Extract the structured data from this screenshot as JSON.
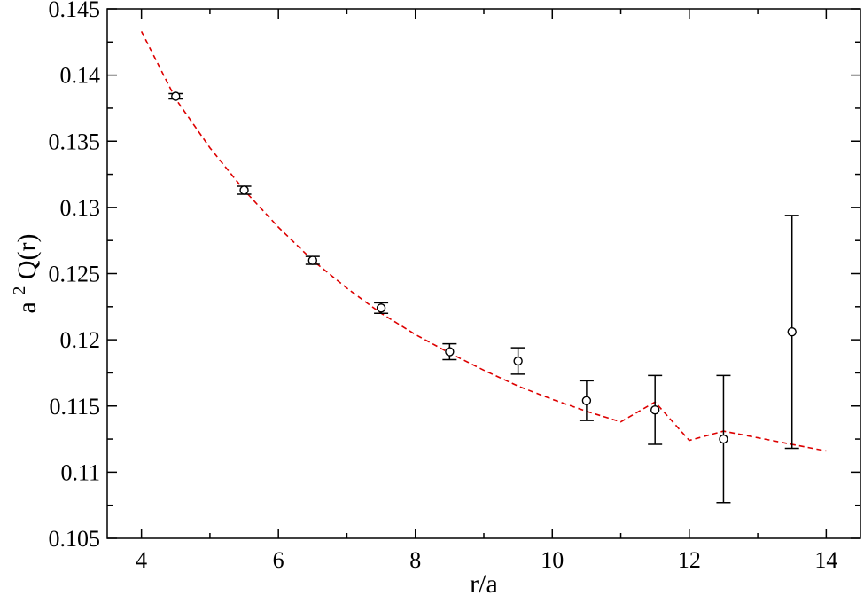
{
  "chart_data": {
    "type": "scatter",
    "title": "",
    "xlabel": "r/a",
    "ylabel_base": "a",
    "ylabel_sup": "2",
    "ylabel_rest": "Q(r)",
    "xlim": [
      3.5,
      14.5
    ],
    "ylim": [
      0.105,
      0.145
    ],
    "x_ticks": [
      4,
      6,
      8,
      10,
      12,
      14
    ],
    "x_tick_labels": [
      "4",
      "6",
      "8",
      "10",
      "12",
      "14"
    ],
    "x_minor_ticks": [
      5,
      7,
      9,
      11,
      13
    ],
    "y_ticks": [
      0.105,
      0.11,
      0.115,
      0.12,
      0.125,
      0.13,
      0.135,
      0.14,
      0.145
    ],
    "y_tick_labels": [
      "0.105",
      "0.11",
      "0.115",
      "0.12",
      "0.125",
      "0.13",
      "0.135",
      "0.14",
      "0.145"
    ],
    "y_minor_ticks": [
      0.1075,
      0.1125,
      0.1175,
      0.1225,
      0.1275,
      0.1325,
      0.1375,
      0.1425
    ],
    "grid": false,
    "series": [
      {
        "kind": "points_with_errorbars",
        "color": "#000000",
        "marker": "open-circle",
        "x": [
          4.5,
          5.5,
          6.5,
          7.5,
          8.5,
          9.5,
          10.5,
          11.5,
          12.5,
          13.5
        ],
        "y": [
          0.1384,
          0.1313,
          0.126,
          0.1224,
          0.1191,
          0.1184,
          0.1154,
          0.1147,
          0.1125,
          0.1206
        ],
        "err": [
          0.0002,
          0.0003,
          0.0003,
          0.0004,
          0.0006,
          0.001,
          0.0015,
          0.0026,
          0.0048,
          0.0088
        ]
      },
      {
        "kind": "fit_curve",
        "color": "#dd0000",
        "style": "dashed",
        "x": [
          4,
          4.5,
          5,
          5.5,
          6,
          6.5,
          7,
          7.5,
          8,
          8.5,
          9,
          9.5,
          10,
          10.5,
          11,
          11.5,
          12,
          12.5,
          13,
          13.5,
          14
        ],
        "y": [
          0.1433,
          0.1382,
          0.1345,
          0.1313,
          0.1285,
          0.126,
          0.1239,
          0.122,
          0.1204,
          0.119,
          0.1177,
          0.1165,
          0.1155,
          0.1146,
          0.1138,
          0.1153,
          0.1124,
          0.1131,
          0.1126,
          0.1121,
          0.1116
        ]
      }
    ]
  }
}
